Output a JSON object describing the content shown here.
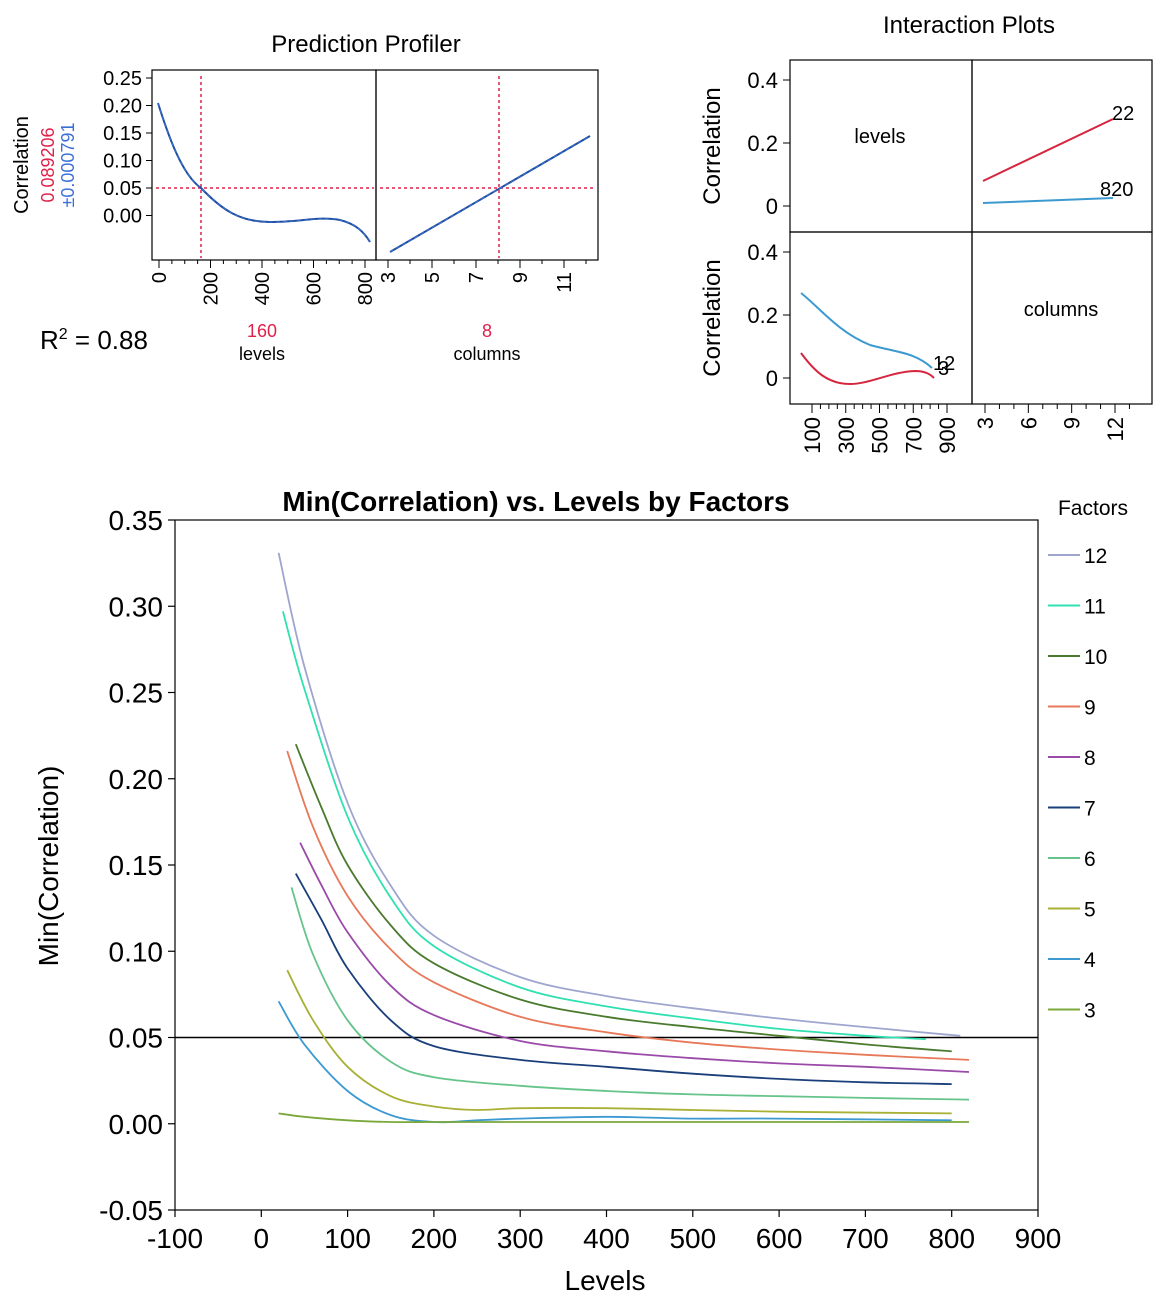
{
  "profiler": {
    "title": "Prediction Profiler",
    "ylabel": "Correlation",
    "pred_value": "0.089206",
    "pred_ci": "±0.000791",
    "r2_prefix": "R",
    "r2_sup": "2",
    "r2_value": " = 0.88",
    "levels_current": "160",
    "levels_label": "levels",
    "columns_current": "8",
    "columns_label": "columns",
    "yticks": [
      "0.25",
      "0.20",
      "0.15",
      "0.10",
      "0.05",
      "0.00"
    ],
    "levels_ticks": [
      "0",
      "200",
      "400",
      "600",
      "800"
    ],
    "columns_ticks": [
      "3",
      "5",
      "7",
      "9",
      "11"
    ],
    "colors": {
      "curve": "#1f4e9c",
      "ref": "#e0204a",
      "ci": "#3b6fd8"
    }
  },
  "interaction": {
    "title": "Interaction Plots",
    "ylabel_top": "Correlation",
    "ylabel_bottom": "Correlation",
    "cell_levels": "levels",
    "cell_columns": "columns",
    "yticks": [
      "0.4",
      "0.2",
      "0"
    ],
    "levels_ticks": [
      "100",
      "300",
      "500",
      "700",
      "900"
    ],
    "columns_ticks": [
      "3",
      "6",
      "9",
      "12"
    ],
    "top_right_labels": {
      "high": "22",
      "low": "820"
    },
    "bottom_left_labels": {
      "a": "12",
      "b": "3"
    },
    "colors": {
      "red": "#d6263f",
      "blue": "#3c9ad1"
    }
  },
  "chart_data": {
    "type": "line",
    "title": "Min(Correlation) vs. Levels by Factors",
    "xlabel": "Levels",
    "ylabel": "Min(Correlation)",
    "xlim": [
      -100,
      900
    ],
    "ylim": [
      -0.05,
      0.35
    ],
    "xticks": [
      "-100",
      "0",
      "100",
      "200",
      "300",
      "400",
      "500",
      "600",
      "700",
      "800",
      "900"
    ],
    "yticks": [
      "0.35",
      "0.30",
      "0.25",
      "0.20",
      "0.15",
      "0.10",
      "0.05",
      "0.00",
      "-0.05"
    ],
    "reference_line": 0.05,
    "legend_title": "Factors",
    "legend_position": "right",
    "series": [
      {
        "name": "12",
        "color": "#9ea6cf",
        "x": [
          20,
          50,
          100,
          150,
          200,
          300,
          400,
          500,
          600,
          700,
          810
        ],
        "y": [
          0.331,
          0.265,
          0.186,
          0.138,
          0.109,
          0.085,
          0.074,
          0.067,
          0.061,
          0.056,
          0.051
        ]
      },
      {
        "name": "11",
        "color": "#2fe0b0",
        "x": [
          25,
          50,
          100,
          150,
          200,
          300,
          400,
          500,
          600,
          700,
          770
        ],
        "y": [
          0.297,
          0.252,
          0.178,
          0.131,
          0.103,
          0.079,
          0.068,
          0.061,
          0.055,
          0.051,
          0.049
        ]
      },
      {
        "name": "10",
        "color": "#4a7a2e",
        "x": [
          40,
          70,
          100,
          150,
          200,
          300,
          400,
          500,
          600,
          700,
          800
        ],
        "y": [
          0.22,
          0.183,
          0.15,
          0.115,
          0.093,
          0.072,
          0.062,
          0.056,
          0.051,
          0.046,
          0.042
        ]
      },
      {
        "name": "9",
        "color": "#e8785a",
        "x": [
          30,
          60,
          100,
          150,
          200,
          300,
          400,
          500,
          600,
          700,
          820
        ],
        "y": [
          0.216,
          0.172,
          0.132,
          0.101,
          0.082,
          0.062,
          0.053,
          0.047,
          0.043,
          0.04,
          0.037
        ]
      },
      {
        "name": "8",
        "color": "#9a4aa8",
        "x": [
          45,
          70,
          100,
          150,
          200,
          300,
          400,
          500,
          600,
          700,
          820
        ],
        "y": [
          0.163,
          0.138,
          0.111,
          0.08,
          0.063,
          0.048,
          0.042,
          0.038,
          0.035,
          0.033,
          0.03
        ]
      },
      {
        "name": "7",
        "color": "#1a3f7a",
        "x": [
          40,
          70,
          100,
          150,
          200,
          300,
          400,
          500,
          600,
          700,
          800
        ],
        "y": [
          0.145,
          0.118,
          0.09,
          0.06,
          0.045,
          0.037,
          0.033,
          0.029,
          0.026,
          0.024,
          0.023
        ]
      },
      {
        "name": "6",
        "color": "#66c48a",
        "x": [
          35,
          60,
          100,
          150,
          200,
          300,
          400,
          500,
          600,
          700,
          820
        ],
        "y": [
          0.137,
          0.098,
          0.06,
          0.036,
          0.027,
          0.022,
          0.019,
          0.017,
          0.016,
          0.015,
          0.014
        ]
      },
      {
        "name": "5",
        "color": "#a8b035",
        "x": [
          30,
          60,
          100,
          150,
          200,
          250,
          300,
          400,
          500,
          600,
          800
        ],
        "y": [
          0.089,
          0.06,
          0.033,
          0.016,
          0.01,
          0.008,
          0.009,
          0.009,
          0.008,
          0.007,
          0.006
        ]
      },
      {
        "name": "4",
        "color": "#3c9ad1",
        "x": [
          20,
          50,
          100,
          150,
          200,
          250,
          300,
          400,
          500,
          600,
          800
        ],
        "y": [
          0.071,
          0.046,
          0.019,
          0.005,
          0.001,
          0.002,
          0.003,
          0.004,
          0.003,
          0.003,
          0.002
        ]
      },
      {
        "name": "3",
        "color": "#7aa83a",
        "x": [
          20,
          50,
          100,
          150,
          200,
          300,
          400,
          500,
          600,
          700,
          820
        ],
        "y": [
          0.006,
          0.004,
          0.002,
          0.001,
          0.001,
          0.001,
          0.001,
          0.001,
          0.001,
          0.001,
          0.001
        ]
      }
    ]
  }
}
